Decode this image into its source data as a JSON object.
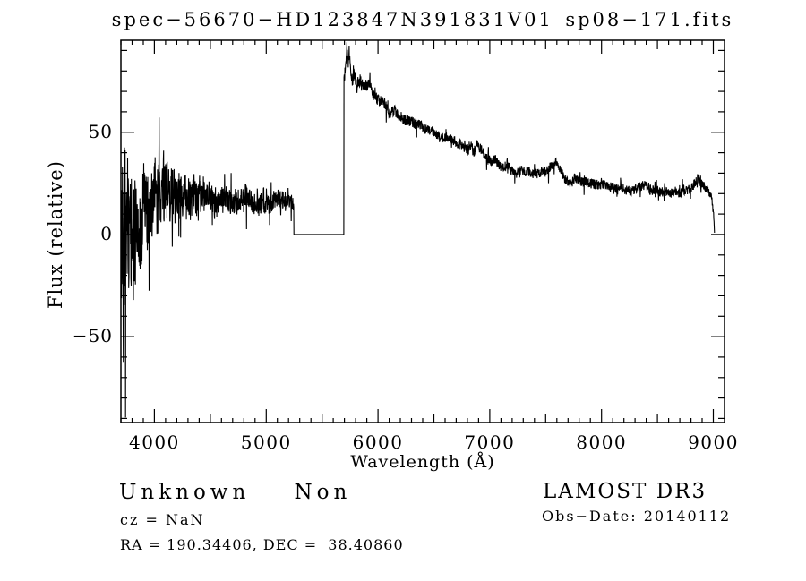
{
  "window": {
    "background": "#ffffff",
    "foreground": "#000000"
  },
  "title": "spec−56670−HD123847N391831V01_sp08−171.fits",
  "annotations": {
    "class_label": "Unknown    Non",
    "cz": "cz = NaN",
    "radec": "RA = 190.34406, DEC =  38.40860",
    "survey": "LAMOST DR3",
    "obs_date": "Obs−Date: 20140112"
  },
  "chart_data": {
    "type": "line",
    "title": "spec−56670−HD123847N391831V01_sp08−171.fits",
    "xlabel": "Wavelength (Å)",
    "ylabel": "Flux (relative)",
    "xlim": [
      3700,
      9100
    ],
    "ylim": [
      -92,
      95
    ],
    "x_ticks": [
      4000,
      5000,
      6000,
      7000,
      8000,
      9000
    ],
    "x_medium_step": 500,
    "x_minor_step": 100,
    "y_ticks": [
      -50,
      0,
      50
    ],
    "y_minor_step": 10,
    "grid": false,
    "legend": null,
    "line_color": "#000000",
    "data_range": [
      3704,
      9010
    ],
    "sample_step": 2,
    "seed": 42,
    "spike_probability": 0.07,
    "masked_region": [
      5248,
      5694
    ],
    "masked_value": 0,
    "blue_arm": {
      "range": [
        3704,
        5248
      ],
      "continuum": [
        [
          3704,
          5
        ],
        [
          3720,
          8
        ],
        [
          3750,
          10
        ],
        [
          3800,
          12
        ],
        [
          3850,
          12
        ],
        [
          3900,
          14
        ],
        [
          3950,
          13
        ],
        [
          4000,
          15
        ],
        [
          4100,
          14
        ],
        [
          4200,
          16
        ],
        [
          4300,
          15
        ],
        [
          4500,
          16
        ],
        [
          4700,
          16
        ],
        [
          4900,
          17
        ],
        [
          5000,
          16
        ],
        [
          5100,
          17
        ],
        [
          5200,
          16
        ],
        [
          5248,
          15
        ]
      ],
      "noise_amp": [
        [
          3704,
          78
        ],
        [
          3730,
          72
        ],
        [
          3760,
          52
        ],
        [
          3800,
          40
        ],
        [
          3850,
          30
        ],
        [
          3900,
          26
        ],
        [
          3950,
          24
        ],
        [
          4000,
          22
        ],
        [
          4050,
          20
        ],
        [
          4100,
          18
        ],
        [
          4150,
          17
        ],
        [
          4200,
          15
        ],
        [
          4300,
          13
        ],
        [
          4400,
          11
        ],
        [
          4500,
          9
        ],
        [
          4600,
          8
        ],
        [
          4800,
          7
        ],
        [
          5000,
          6
        ],
        [
          5248,
          5
        ]
      ]
    },
    "red_arm": {
      "range": [
        5694,
        9010
      ],
      "continuum": [
        [
          5698,
          75
        ],
        [
          5712,
          86
        ],
        [
          5722,
          92
        ],
        [
          5732,
          82
        ],
        [
          5742,
          89
        ],
        [
          5755,
          80
        ],
        [
          5770,
          74
        ],
        [
          5790,
          77
        ],
        [
          5810,
          72
        ],
        [
          5840,
          75
        ],
        [
          5870,
          70
        ],
        [
          5900,
          72
        ],
        [
          5925,
          74
        ],
        [
          5950,
          68
        ],
        [
          6000,
          64
        ],
        [
          6050,
          65
        ],
        [
          6100,
          61
        ],
        [
          6150,
          62
        ],
        [
          6200,
          58
        ],
        [
          6300,
          56
        ],
        [
          6400,
          52
        ],
        [
          6500,
          49
        ],
        [
          6560,
          46
        ],
        [
          6620,
          47
        ],
        [
          6700,
          44
        ],
        [
          6800,
          41
        ],
        [
          6840,
          43
        ],
        [
          6860,
          37
        ],
        [
          6880,
          44
        ],
        [
          6950,
          38
        ],
        [
          7000,
          35
        ],
        [
          7050,
          36
        ],
        [
          7100,
          33
        ],
        [
          7150,
          34
        ],
        [
          7200,
          32
        ],
        [
          7300,
          30
        ],
        [
          7400,
          30
        ],
        [
          7500,
          31
        ],
        [
          7560,
          34
        ],
        [
          7600,
          35
        ],
        [
          7620,
          33
        ],
        [
          7680,
          26
        ],
        [
          7720,
          24
        ],
        [
          7760,
          27
        ],
        [
          7800,
          27
        ],
        [
          7900,
          26
        ],
        [
          8000,
          25
        ],
        [
          8100,
          24
        ],
        [
          8200,
          23
        ],
        [
          8300,
          22
        ],
        [
          8400,
          23
        ],
        [
          8500,
          21
        ],
        [
          8600,
          22
        ],
        [
          8700,
          21
        ],
        [
          8800,
          23
        ],
        [
          8860,
          27
        ],
        [
          8900,
          24
        ],
        [
          8950,
          22
        ],
        [
          8980,
          20
        ],
        [
          9000,
          12
        ],
        [
          9010,
          2
        ]
      ],
      "noise_amp": [
        [
          5698,
          4
        ],
        [
          6000,
          3.5
        ],
        [
          6500,
          3
        ],
        [
          7000,
          3
        ],
        [
          8000,
          2.8
        ],
        [
          8600,
          3.2
        ],
        [
          9000,
          2.5
        ],
        [
          9010,
          1.5
        ]
      ]
    }
  }
}
